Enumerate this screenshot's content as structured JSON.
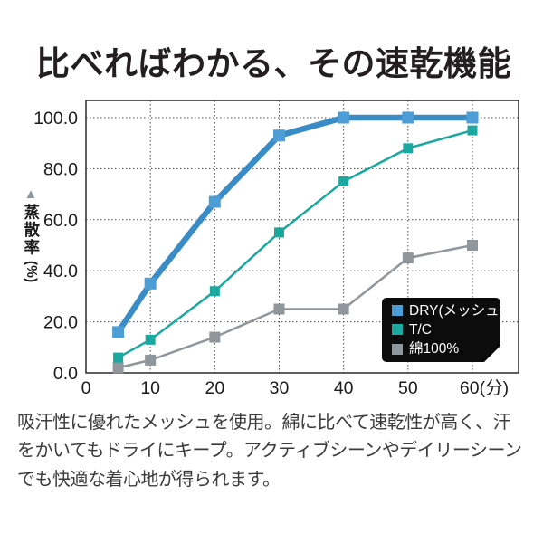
{
  "title": "比べればわかる、その速乾機能",
  "caption": "吸汗性に優れたメッシュを使用。綿に比べて速乾性が高く、汗をかいてもドライにキープ。アクティブシーンやデイリーシーンでも快適な着心地が得られます。",
  "chart_data": {
    "type": "line",
    "x": [
      5,
      10,
      20,
      30,
      40,
      50,
      60
    ],
    "series": [
      {
        "name": "DRY(メッシュ)",
        "values": [
          16,
          35,
          67,
          93,
          100,
          100,
          100
        ],
        "color": "#3a8cc6",
        "marker_color": "#4d9ed6",
        "line_width": 6.5,
        "marker_size": 13
      },
      {
        "name": "T/C",
        "values": [
          6,
          13,
          32,
          55,
          75,
          88,
          95
        ],
        "color": "#1aa8a0",
        "marker_color": "#1aa8a0",
        "line_width": 2.5,
        "marker_size": 11
      },
      {
        "name": "綿100%",
        "values": [
          2,
          5,
          14,
          25,
          25,
          45,
          50
        ],
        "color": "#8f969c",
        "marker_color": "#8f969c",
        "line_width": 2.5,
        "marker_size": 12
      }
    ],
    "x_ticks": [
      0,
      10,
      20,
      30,
      40,
      50,
      60
    ],
    "x_tick_labels": [
      "0",
      "10",
      "20",
      "30",
      "40",
      "50",
      "60(分)"
    ],
    "y_ticks": [
      0,
      20,
      40,
      60,
      80,
      100
    ],
    "y_tick_labels": [
      "0.0",
      "20.0",
      "40.0",
      "60.0",
      "80.0",
      "100.0"
    ],
    "xlabel_unit": "(分)",
    "ylabel_marker": "▲",
    "ylabel": "蒸散率",
    "ylabel_unit": "(%)",
    "xlim": [
      0,
      67
    ],
    "ylim": [
      0,
      107
    ],
    "grid": true,
    "grid_style": "dotted",
    "legend_position": "bottom-right",
    "legend_bg": "#0c0c0c",
    "legend_text_color": "#ffffff",
    "axis_color": "#383838",
    "tick_label_color": "#1a1a1a"
  }
}
